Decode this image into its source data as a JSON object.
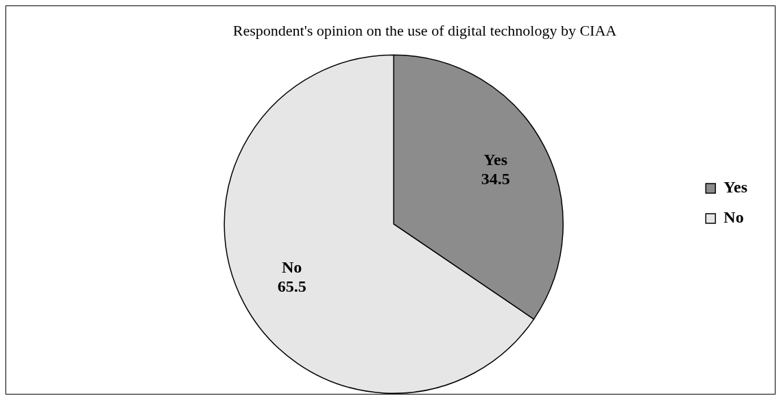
{
  "chart_data": {
    "type": "pie",
    "title": "Respondent's opinion on the use of digital technology by CIAA",
    "categories": [
      "Yes",
      "No"
    ],
    "values": [
      34.5,
      65.5
    ],
    "colors": [
      "#8c8c8c",
      "#e6e6e6"
    ],
    "data_labels": true,
    "legend": "right"
  }
}
